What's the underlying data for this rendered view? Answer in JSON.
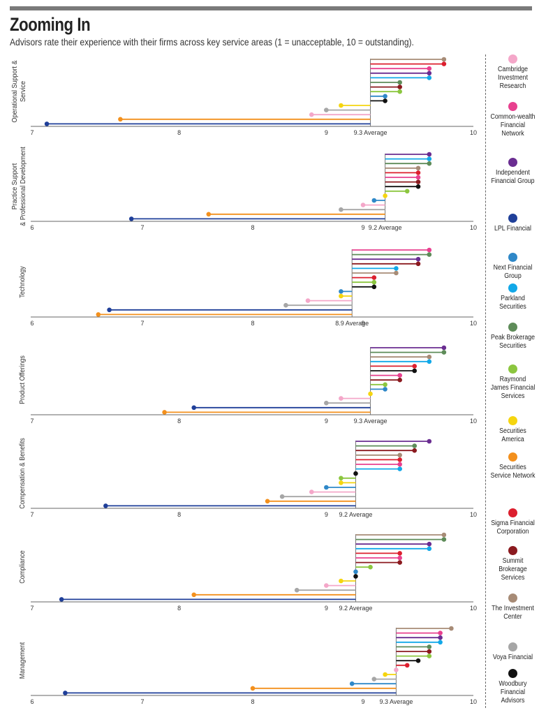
{
  "title": "Zooming In",
  "subtitle": "Advisors rate their experience with their firms across key service areas (1 = unacceptable, 10 = outstanding).",
  "firms": [
    {
      "name": "Cambridge Investment Research",
      "color": "#f4a7c9"
    },
    {
      "name": "Common-wealth Financial Network",
      "color": "#e8408f"
    },
    {
      "name": "Independent Financial Group",
      "color": "#6a2d91"
    },
    {
      "name": "LPL Financial",
      "color": "#1f3f99"
    },
    {
      "name": "Next Financial Group",
      "color": "#2f88c8"
    },
    {
      "name": "Parkland Securities",
      "color": "#12a8e8"
    },
    {
      "name": "Peak Brokerage Securities",
      "color": "#5e8c59"
    },
    {
      "name": "Raymond James Financial Services",
      "color": "#8cc63f"
    },
    {
      "name": "Securities America",
      "color": "#f5d50f"
    },
    {
      "name": "Securities Service Network",
      "color": "#f3901d"
    },
    {
      "name": "Sigma Financial Corporation",
      "color": "#dc1f2e"
    },
    {
      "name": "Summit Brokerage Services",
      "color": "#8b1a1f"
    },
    {
      "name": "The Investment Center",
      "color": "#a78b76"
    },
    {
      "name": "Voya Financial",
      "color": "#a6a6a6"
    },
    {
      "name": "Woodbury Financial Advisors",
      "color": "#111111"
    }
  ],
  "chart_data": [
    {
      "type": "lollipop",
      "ylabel": "Operational Support & Service",
      "average": 9.3,
      "average_label": "9.3 Average",
      "xlim": [
        7,
        10
      ],
      "xticks": [
        7,
        8,
        9,
        10
      ],
      "series": [
        {
          "name": "The Investment Center",
          "value": 9.8
        },
        {
          "name": "Sigma Financial Corporation",
          "value": 9.8
        },
        {
          "name": "Common-wealth Financial Network",
          "value": 9.7
        },
        {
          "name": "Independent Financial Group",
          "value": 9.7
        },
        {
          "name": "Parkland Securities",
          "value": 9.7
        },
        {
          "name": "Peak Brokerage Securities",
          "value": 9.5
        },
        {
          "name": "Summit Brokerage Services",
          "value": 9.5
        },
        {
          "name": "Raymond James Financial Services",
          "value": 9.5
        },
        {
          "name": "Next Financial Group",
          "value": 9.4
        },
        {
          "name": "Woodbury Financial Advisors",
          "value": 9.4
        },
        {
          "name": "Securities America",
          "value": 9.1
        },
        {
          "name": "Voya Financial",
          "value": 9.0
        },
        {
          "name": "Cambridge Investment Research",
          "value": 8.9
        },
        {
          "name": "Securities Service Network",
          "value": 7.6
        },
        {
          "name": "LPL Financial",
          "value": 7.1
        }
      ]
    },
    {
      "type": "lollipop",
      "ylabel": "Practice Support & Professional Development",
      "average": 9.2,
      "average_label": "9.2 Average",
      "xlim": [
        6,
        10
      ],
      "xticks": [
        6,
        7,
        8,
        9,
        10
      ],
      "series": [
        {
          "name": "Independent Financial Group",
          "value": 9.6
        },
        {
          "name": "Parkland Securities",
          "value": 9.6
        },
        {
          "name": "Peak Brokerage Securities",
          "value": 9.6
        },
        {
          "name": "The Investment Center",
          "value": 9.5
        },
        {
          "name": "Sigma Financial Corporation",
          "value": 9.5
        },
        {
          "name": "Common-wealth Financial Network",
          "value": 9.5
        },
        {
          "name": "Summit Brokerage Services",
          "value": 9.5
        },
        {
          "name": "Woodbury Financial Advisors",
          "value": 9.5
        },
        {
          "name": "Raymond James Financial Services",
          "value": 9.4
        },
        {
          "name": "Securities America",
          "value": 9.2
        },
        {
          "name": "Next Financial Group",
          "value": 9.1
        },
        {
          "name": "Cambridge Investment Research",
          "value": 9.0
        },
        {
          "name": "Voya Financial",
          "value": 8.8
        },
        {
          "name": "Securities Service Network",
          "value": 7.6
        },
        {
          "name": "LPL Financial",
          "value": 6.9
        }
      ]
    },
    {
      "type": "lollipop",
      "ylabel": "Technology",
      "average": 8.9,
      "average_label": "8.9 Average",
      "xlim": [
        6,
        10
      ],
      "xticks": [
        6,
        7,
        8,
        9,
        10
      ],
      "series": [
        {
          "name": "Common-wealth Financial Network",
          "value": 9.6
        },
        {
          "name": "Peak Brokerage Securities",
          "value": 9.6
        },
        {
          "name": "Independent Financial Group",
          "value": 9.5
        },
        {
          "name": "Summit Brokerage Services",
          "value": 9.5
        },
        {
          "name": "Parkland Securities",
          "value": 9.3
        },
        {
          "name": "The Investment Center",
          "value": 9.3
        },
        {
          "name": "Sigma Financial Corporation",
          "value": 9.1
        },
        {
          "name": "Raymond James Financial Services",
          "value": 9.1
        },
        {
          "name": "Woodbury Financial Advisors",
          "value": 9.1
        },
        {
          "name": "Next Financial Group",
          "value": 8.8
        },
        {
          "name": "Securities America",
          "value": 8.8
        },
        {
          "name": "Cambridge Investment Research",
          "value": 8.5
        },
        {
          "name": "Voya Financial",
          "value": 8.3
        },
        {
          "name": "LPL Financial",
          "value": 6.7
        },
        {
          "name": "Securities Service Network",
          "value": 6.6
        }
      ]
    },
    {
      "type": "lollipop",
      "ylabel": "Product Offerings",
      "average": 9.3,
      "average_label": "9.3 Average",
      "xlim": [
        7,
        10
      ],
      "xticks": [
        7,
        8,
        9,
        10
      ],
      "series": [
        {
          "name": "Independent Financial Group",
          "value": 9.8
        },
        {
          "name": "Peak Brokerage Securities",
          "value": 9.8
        },
        {
          "name": "The Investment Center",
          "value": 9.7
        },
        {
          "name": "Parkland Securities",
          "value": 9.7
        },
        {
          "name": "Sigma Financial Corporation",
          "value": 9.6
        },
        {
          "name": "Woodbury Financial Advisors",
          "value": 9.6
        },
        {
          "name": "Common-wealth Financial Network",
          "value": 9.5
        },
        {
          "name": "Summit Brokerage Services",
          "value": 9.5
        },
        {
          "name": "Raymond James Financial Services",
          "value": 9.4
        },
        {
          "name": "Next Financial Group",
          "value": 9.4
        },
        {
          "name": "Securities America",
          "value": 9.3
        },
        {
          "name": "Cambridge Investment Research",
          "value": 9.1
        },
        {
          "name": "Voya Financial",
          "value": 9.0
        },
        {
          "name": "LPL Financial",
          "value": 8.1
        },
        {
          "name": "Securities Service Network",
          "value": 7.9
        }
      ]
    },
    {
      "type": "lollipop",
      "ylabel": "Compensation & Benefits",
      "average": 9.2,
      "average_label": "9.2 Average",
      "xlim": [
        7,
        10
      ],
      "xticks": [
        7,
        8,
        9,
        10
      ],
      "series": [
        {
          "name": "Independent Financial Group",
          "value": 9.7
        },
        {
          "name": "Peak Brokerage Securities",
          "value": 9.6
        },
        {
          "name": "Summit Brokerage Services",
          "value": 9.6
        },
        {
          "name": "The Investment Center",
          "value": 9.5
        },
        {
          "name": "Sigma Financial Corporation",
          "value": 9.5
        },
        {
          "name": "Common-wealth Financial Network",
          "value": 9.5
        },
        {
          "name": "Parkland Securities",
          "value": 9.5
        },
        {
          "name": "Woodbury Financial Advisors",
          "value": 9.2
        },
        {
          "name": "Raymond James Financial Services",
          "value": 9.1
        },
        {
          "name": "Securities America",
          "value": 9.1
        },
        {
          "name": "Next Financial Group",
          "value": 9.0
        },
        {
          "name": "Cambridge Investment Research",
          "value": 8.9
        },
        {
          "name": "Voya Financial",
          "value": 8.7
        },
        {
          "name": "Securities Service Network",
          "value": 8.6
        },
        {
          "name": "LPL Financial",
          "value": 7.5
        }
      ]
    },
    {
      "type": "lollipop",
      "ylabel": "Compliance",
      "average": 9.2,
      "average_label": "9.2 Average",
      "xlim": [
        7,
        10
      ],
      "xticks": [
        7,
        8,
        9,
        10
      ],
      "series": [
        {
          "name": "The Investment Center",
          "value": 9.8
        },
        {
          "name": "Peak Brokerage Securities",
          "value": 9.8
        },
        {
          "name": "Independent Financial Group",
          "value": 9.7
        },
        {
          "name": "Parkland Securities",
          "value": 9.7
        },
        {
          "name": "Sigma Financial Corporation",
          "value": 9.5
        },
        {
          "name": "Common-wealth Financial Network",
          "value": 9.5
        },
        {
          "name": "Summit Brokerage Services",
          "value": 9.5
        },
        {
          "name": "Raymond James Financial Services",
          "value": 9.3
        },
        {
          "name": "Next Financial Group",
          "value": 9.2
        },
        {
          "name": "Woodbury Financial Advisors",
          "value": 9.2
        },
        {
          "name": "Securities America",
          "value": 9.1
        },
        {
          "name": "Cambridge Investment Research",
          "value": 9.0
        },
        {
          "name": "Voya Financial",
          "value": 8.8
        },
        {
          "name": "Securities Service Network",
          "value": 8.1
        },
        {
          "name": "LPL Financial",
          "value": 7.2
        }
      ]
    },
    {
      "type": "lollipop",
      "ylabel": "Management",
      "average": 9.3,
      "average_label": "9.3 Average",
      "xlim": [
        6,
        10
      ],
      "xticks": [
        6,
        7,
        8,
        9,
        10
      ],
      "series": [
        {
          "name": "The Investment Center",
          "value": 9.8
        },
        {
          "name": "Common-wealth Financial Network",
          "value": 9.7
        },
        {
          "name": "Independent Financial Group",
          "value": 9.7
        },
        {
          "name": "Parkland Securities",
          "value": 9.7
        },
        {
          "name": "Peak Brokerage Securities",
          "value": 9.6
        },
        {
          "name": "Summit Brokerage Services",
          "value": 9.6
        },
        {
          "name": "Raymond James Financial Services",
          "value": 9.6
        },
        {
          "name": "Woodbury Financial Advisors",
          "value": 9.5
        },
        {
          "name": "Sigma Financial Corporation",
          "value": 9.4
        },
        {
          "name": "Cambridge Investment Research",
          "value": 9.3
        },
        {
          "name": "Securities America",
          "value": 9.2
        },
        {
          "name": "Voya Financial",
          "value": 9.1
        },
        {
          "name": "Next Financial Group",
          "value": 8.9
        },
        {
          "name": "Securities Service Network",
          "value": 8.0
        },
        {
          "name": "LPL Financial",
          "value": 6.3
        }
      ]
    }
  ]
}
